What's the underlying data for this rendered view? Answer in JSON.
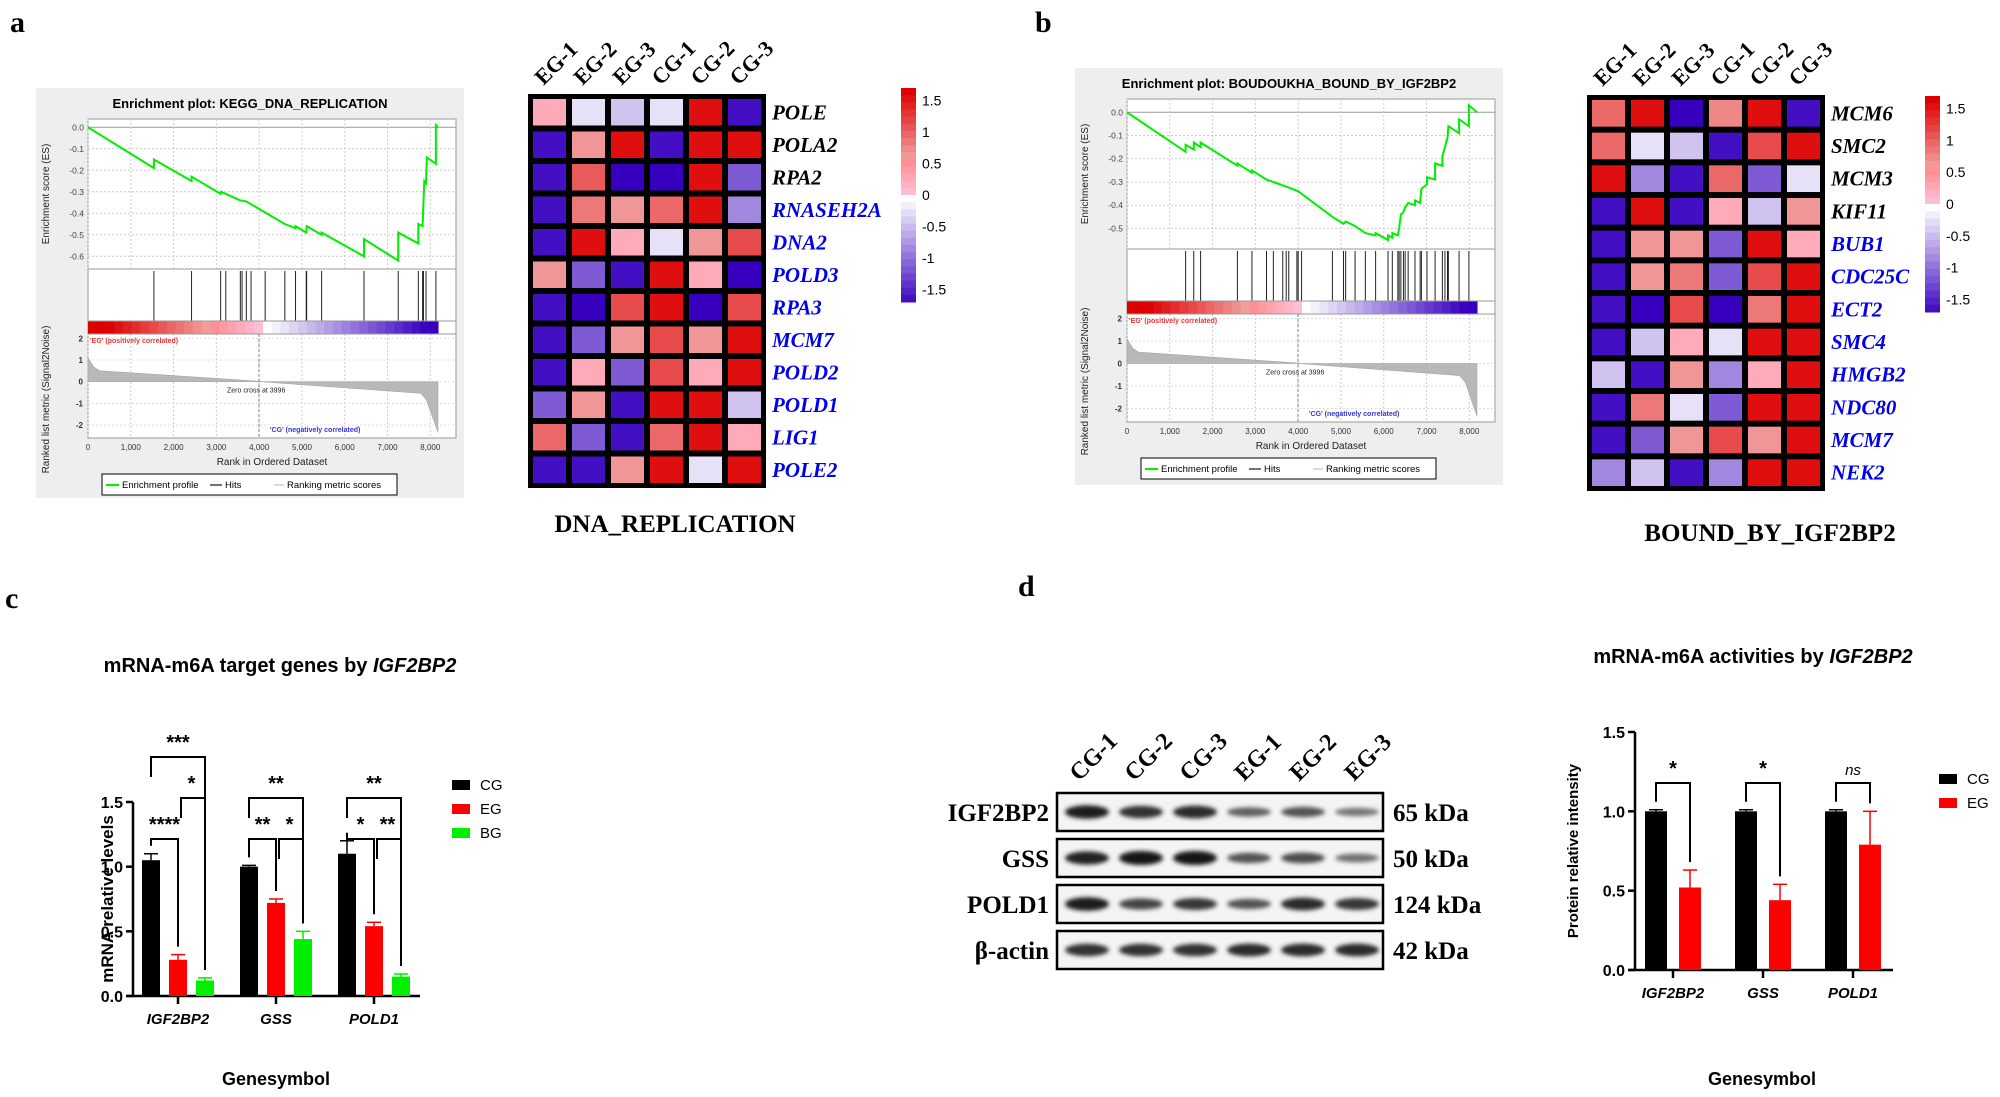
{
  "panel_labels": {
    "a": "a",
    "b": "b",
    "c": "c",
    "d": "d"
  },
  "chart_data": [
    {
      "id": "gsea_a",
      "type": "line",
      "title": "Enrichment plot: KEGG_DNA_REPLICATION",
      "ylabel_top": "Enrichment score (ES)",
      "ylabel_bottom": "Ranked list metric (Signal2Noise)",
      "xlabel": "Rank in Ordered Dataset",
      "es_ylim": [
        -0.65,
        0.02
      ],
      "es_yticks": [
        "0.0",
        "-0.1",
        "-0.2",
        "-0.3",
        "-0.4",
        "-0.5",
        "-0.6"
      ],
      "es_ytick_values": [
        0.0,
        -0.1,
        -0.2,
        -0.3,
        -0.4,
        -0.5,
        -0.6
      ],
      "xlim": [
        0,
        8600
      ],
      "xticks": [
        "0",
        "1,000",
        "2,000",
        "3,000",
        "4,000",
        "5,000",
        "6,000",
        "7,000",
        "8,000"
      ],
      "xtick_values": [
        0,
        1000,
        2000,
        3000,
        4000,
        5000,
        6000,
        7000,
        8000
      ],
      "metric_yticks": [
        "2",
        "1",
        "0",
        "-1",
        "-2"
      ],
      "metric_ytick_values": [
        2,
        1,
        0,
        -1,
        -2
      ],
      "metric_ylim": [
        -2.6,
        2.2
      ],
      "n_genes": 8180,
      "hits": [
        1540,
        2420,
        3100,
        3220,
        3560,
        3600,
        3700,
        3810,
        4140,
        4600,
        4850,
        5100,
        5110,
        5460,
        6450,
        7250,
        7720,
        7820,
        7840,
        7900,
        8130
      ],
      "es_points": [
        [
          0,
          0
        ],
        [
          1540,
          -0.19
        ],
        [
          1540,
          -0.15
        ],
        [
          2420,
          -0.25
        ],
        [
          2420,
          -0.23
        ],
        [
          3100,
          -0.31
        ],
        [
          3110,
          -0.3
        ],
        [
          3220,
          -0.31
        ],
        [
          3560,
          -0.34
        ],
        [
          3700,
          -0.345
        ],
        [
          4600,
          -0.45
        ],
        [
          4850,
          -0.47
        ],
        [
          4850,
          -0.46
        ],
        [
          5100,
          -0.49
        ],
        [
          5110,
          -0.46
        ],
        [
          5460,
          -0.5
        ],
        [
          5460,
          -0.49
        ],
        [
          6450,
          -0.6
        ],
        [
          6450,
          -0.52
        ],
        [
          7250,
          -0.62
        ],
        [
          7250,
          -0.49
        ],
        [
          7720,
          -0.54
        ],
        [
          7720,
          -0.45
        ],
        [
          7820,
          -0.46
        ],
        [
          7840,
          -0.35
        ],
        [
          7860,
          -0.25
        ],
        [
          7900,
          -0.26
        ],
        [
          7920,
          -0.14
        ],
        [
          8130,
          -0.17
        ],
        [
          8130,
          0.01
        ],
        [
          8180,
          0.0
        ]
      ],
      "zero_cross_label": "Zero cross at 3996",
      "zero_cross": 3996,
      "pos_label": "'EG' (positively correlated)",
      "neg_label": "'CG' (negatively correlated)",
      "legend": [
        "Enrichment profile",
        "Hits",
        "Ranking metric scores"
      ],
      "colors": {
        "es": "#00ee00",
        "pos": "#ee3333",
        "neg": "#3333dd"
      }
    },
    {
      "id": "heatmap_a",
      "type": "heatmap",
      "columns": [
        "EG-1",
        "EG-2",
        "EG-3",
        "CG-1",
        "CG-2",
        "CG-3"
      ],
      "rows": [
        "POLE",
        "POLA2",
        "RPA2",
        "RNASEH2A",
        "DNA2",
        "POLD3",
        "RPA3",
        "MCM7",
        "POLD2",
        "POLD1",
        "LIG1",
        "POLE2"
      ],
      "row_label_colors": [
        "#000000",
        "#000000",
        "#000000",
        "#0000ee",
        "#0000ee",
        "#0000ee",
        "#0000ee",
        "#0000ee",
        "#0000ee",
        "#0000ee",
        "#0000ee",
        "#0000ee"
      ],
      "values": [
        [
          0.3,
          -0.2,
          -0.4,
          -0.2,
          1.6,
          -1.6
        ],
        [
          -1.6,
          0.7,
          1.6,
          -1.6,
          1.6,
          1.6
        ],
        [
          -1.6,
          1.1,
          -1.8,
          -1.8,
          1.6,
          -1.1
        ],
        [
          -1.6,
          0.9,
          0.7,
          1.0,
          1.6,
          -0.8
        ],
        [
          -1.6,
          1.6,
          0.3,
          -0.2,
          0.7,
          1.2
        ],
        [
          0.7,
          -1.1,
          -1.6,
          1.6,
          0.3,
          -1.8
        ],
        [
          -1.6,
          -1.8,
          1.2,
          1.6,
          -1.8,
          1.2
        ],
        [
          -1.6,
          -1.1,
          0.7,
          1.2,
          0.7,
          1.6
        ],
        [
          -1.6,
          0.3,
          -1.1,
          1.2,
          0.3,
          1.6
        ],
        [
          -1.1,
          0.7,
          -1.6,
          1.6,
          1.6,
          -0.4
        ],
        [
          1.0,
          -1.1,
          -1.6,
          1.0,
          1.6,
          0.3
        ],
        [
          -1.6,
          -1.6,
          0.7,
          1.6,
          -0.2,
          1.6
        ]
      ],
      "colorbar_ticks": [
        "1.5",
        "1",
        "0.5",
        "0",
        "-0.5",
        "-1",
        "-1.5"
      ],
      "colorbar_tick_values": [
        1.5,
        1,
        0.5,
        0,
        -0.5,
        -1,
        -1.5
      ],
      "range": [
        -1.7,
        1.7
      ],
      "title": "DNA_REPLICATION"
    },
    {
      "id": "gsea_b",
      "type": "line",
      "title": "Enrichment plot: BOUDOUKHA_BOUND_BY_IGF2BP2",
      "ylabel_top": "Enrichment score (ES)",
      "ylabel_bottom": "Ranked list metric (Signal2Noise)",
      "xlabel": "Rank in Ordered Dataset",
      "es_ylim": [
        -0.58,
        0.04
      ],
      "es_yticks": [
        "0.0",
        "-0.1",
        "-0.2",
        "-0.3",
        "-0.4",
        "-0.5"
      ],
      "es_ytick_values": [
        0.0,
        -0.1,
        -0.2,
        -0.3,
        -0.4,
        -0.5
      ],
      "xlim": [
        0,
        8600
      ],
      "xticks": [
        "0",
        "1,000",
        "2,000",
        "3,000",
        "4,000",
        "5,000",
        "6,000",
        "7,000",
        "8,000"
      ],
      "xtick_values": [
        0,
        1000,
        2000,
        3000,
        4000,
        5000,
        6000,
        7000,
        8000
      ],
      "metric_yticks": [
        "2",
        "1",
        "0",
        "-1",
        "-2"
      ],
      "metric_ytick_values": [
        2,
        1,
        0,
        -1,
        -2
      ],
      "metric_ylim": [
        -2.6,
        2.2
      ],
      "n_genes": 8180,
      "hits": [
        1370,
        1560,
        1720,
        2580,
        2920,
        3260,
        3420,
        3640,
        3720,
        3780,
        3970,
        4000,
        4080,
        4800,
        5060,
        5110,
        5330,
        5570,
        5810,
        6100,
        6200,
        6330,
        6360,
        6400,
        6460,
        6500,
        6570,
        6730,
        6850,
        6880,
        7010,
        7200,
        7370,
        7430,
        7490,
        7510,
        7760,
        7990
      ],
      "es_points": [
        [
          0,
          0
        ],
        [
          1370,
          -0.17
        ],
        [
          1370,
          -0.14
        ],
        [
          1560,
          -0.16
        ],
        [
          1560,
          -0.13
        ],
        [
          1720,
          -0.15
        ],
        [
          1720,
          -0.13
        ],
        [
          2580,
          -0.23
        ],
        [
          2580,
          -0.22
        ],
        [
          2920,
          -0.26
        ],
        [
          2920,
          -0.25
        ],
        [
          3260,
          -0.29
        ],
        [
          3420,
          -0.3
        ],
        [
          3720,
          -0.32
        ],
        [
          4000,
          -0.34
        ],
        [
          4800,
          -0.45
        ],
        [
          5060,
          -0.48
        ],
        [
          5110,
          -0.47
        ],
        [
          5330,
          -0.49
        ],
        [
          5570,
          -0.52
        ],
        [
          5810,
          -0.53
        ],
        [
          5810,
          -0.52
        ],
        [
          6100,
          -0.55
        ],
        [
          6100,
          -0.53
        ],
        [
          6200,
          -0.54
        ],
        [
          6200,
          -0.52
        ],
        [
          6330,
          -0.53
        ],
        [
          6360,
          -0.5
        ],
        [
          6400,
          -0.44
        ],
        [
          6460,
          -0.43
        ],
        [
          6500,
          -0.41
        ],
        [
          6570,
          -0.39
        ],
        [
          6730,
          -0.4
        ],
        [
          6730,
          -0.38
        ],
        [
          6850,
          -0.39
        ],
        [
          6880,
          -0.33
        ],
        [
          7010,
          -0.31
        ],
        [
          7010,
          -0.28
        ],
        [
          7200,
          -0.29
        ],
        [
          7200,
          -0.22
        ],
        [
          7370,
          -0.23
        ],
        [
          7370,
          -0.19
        ],
        [
          7430,
          -0.15
        ],
        [
          7490,
          -0.11
        ],
        [
          7510,
          -0.06
        ],
        [
          7760,
          -0.09
        ],
        [
          7760,
          -0.03
        ],
        [
          7990,
          -0.06
        ],
        [
          7990,
          0.03
        ],
        [
          8180,
          0.0
        ]
      ],
      "zero_cross_label": "Zero cross at 3996",
      "zero_cross": 3996,
      "pos_label": "'EG' (positively correlated)",
      "neg_label": "'CG' (negatively correlated)",
      "legend": [
        "Enrichment profile",
        "Hits",
        "Ranking metric scores"
      ],
      "colors": {
        "es": "#00ee00",
        "pos": "#ee3333",
        "neg": "#3333dd"
      }
    },
    {
      "id": "heatmap_b",
      "type": "heatmap",
      "columns": [
        "EG-1",
        "EG-2",
        "EG-3",
        "CG-1",
        "CG-2",
        "CG-3"
      ],
      "rows": [
        "MCM6",
        "SMC2",
        "MCM3",
        "KIF11",
        "BUB1",
        "CDC25C",
        "ECT2",
        "SMC4",
        "HMGB2",
        "NDC80",
        "MCM7",
        "NEK2"
      ],
      "row_label_colors": [
        "#000000",
        "#000000",
        "#000000",
        "#000000",
        "#0000ee",
        "#0000ee",
        "#0000ee",
        "#0000ee",
        "#0000ee",
        "#0000ee",
        "#0000ee",
        "#0000ee"
      ],
      "values": [
        [
          1.0,
          1.6,
          -1.8,
          0.8,
          1.6,
          -1.6
        ],
        [
          1.0,
          -0.2,
          -0.4,
          -1.6,
          1.2,
          1.6
        ],
        [
          1.6,
          -0.8,
          -1.6,
          1.0,
          -1.1,
          -0.2
        ],
        [
          -1.6,
          1.6,
          -1.6,
          0.3,
          -0.4,
          0.7
        ],
        [
          -1.6,
          0.7,
          0.7,
          -1.1,
          1.6,
          0.3
        ],
        [
          -1.6,
          0.7,
          0.9,
          -1.1,
          1.2,
          1.6
        ],
        [
          -1.6,
          -1.8,
          1.2,
          -1.8,
          0.9,
          1.6
        ],
        [
          -1.6,
          -0.4,
          0.3,
          -0.2,
          1.6,
          1.6
        ],
        [
          -0.4,
          -1.6,
          0.7,
          -0.8,
          0.3,
          1.6
        ],
        [
          -1.6,
          0.9,
          -0.2,
          -1.1,
          1.6,
          1.6
        ],
        [
          -1.6,
          -1.1,
          0.7,
          1.2,
          0.7,
          1.6
        ],
        [
          -0.8,
          -0.4,
          -1.6,
          -0.8,
          1.6,
          1.6
        ]
      ],
      "colorbar_ticks": [
        "1.5",
        "1",
        "0.5",
        "0",
        "-0.5",
        "-1",
        "-1.5"
      ],
      "colorbar_tick_values": [
        1.5,
        1,
        0.5,
        0,
        -0.5,
        -1,
        -1.5
      ],
      "range": [
        -1.7,
        1.7
      ],
      "title": "BOUND_BY_IGF2BP2"
    },
    {
      "id": "bar_c",
      "type": "bar",
      "title_prefix": "mRNA-m6A target genes by ",
      "title_italic": "IGF2BP2",
      "xlabel": "Genesymbol",
      "ylabel": "mRNA relative levels",
      "ylim": [
        0,
        1.5
      ],
      "yticks": [
        "0.0",
        "0.5",
        "1.0",
        "1.5"
      ],
      "ytick_values": [
        0,
        0.5,
        1.0,
        1.5
      ],
      "categories": [
        "IGF2BP2",
        "GSS",
        "POLD1"
      ],
      "series": [
        {
          "name": "CG",
          "color": "#000000",
          "values": [
            1.05,
            1.0,
            1.1
          ],
          "errors": [
            0.05,
            0.01,
            0.1
          ]
        },
        {
          "name": "EG",
          "color": "#ff0000",
          "values": [
            0.28,
            0.72,
            0.54
          ],
          "errors": [
            0.04,
            0.03,
            0.03
          ]
        },
        {
          "name": "BG",
          "color": "#00ee00",
          "values": [
            0.12,
            0.44,
            0.15
          ],
          "errors": [
            0.02,
            0.06,
            0.02
          ]
        }
      ],
      "significance": [
        {
          "category": 0,
          "from": 0,
          "to": 1,
          "label": "****",
          "level": 1
        },
        {
          "category": 0,
          "from": 1,
          "to": 2,
          "label": "*",
          "level": 2
        },
        {
          "category": 0,
          "from": 0,
          "to": 2,
          "label": "***",
          "level": 3
        },
        {
          "category": 1,
          "from": 0,
          "to": 1,
          "label": "**",
          "level": 1
        },
        {
          "category": 1,
          "from": 1,
          "to": 2,
          "label": "*",
          "level": 1
        },
        {
          "category": 1,
          "from": 0,
          "to": 2,
          "label": "**",
          "level": 2
        },
        {
          "category": 2,
          "from": 0,
          "to": 1,
          "label": "*",
          "level": 1
        },
        {
          "category": 2,
          "from": 1,
          "to": 2,
          "label": "**",
          "level": 1
        },
        {
          "category": 2,
          "from": 0,
          "to": 2,
          "label": "**",
          "level": 2
        }
      ],
      "legend": [
        "CG",
        "EG",
        "BG"
      ],
      "legend_position": "right"
    },
    {
      "id": "western_blot",
      "type": "table",
      "lanes": [
        "CG-1",
        "CG-2",
        "CG-3",
        "EG-1",
        "EG-2",
        "EG-3"
      ],
      "proteins": [
        {
          "name": "IGF2BP2",
          "size": "65 kDa",
          "intensities": [
            0.95,
            0.8,
            0.85,
            0.45,
            0.55,
            0.3
          ]
        },
        {
          "name": "GSS",
          "size": "50 kDa",
          "intensities": [
            0.9,
            1.0,
            1.0,
            0.55,
            0.6,
            0.35
          ]
        },
        {
          "name": "POLD1",
          "size": "124 kDa",
          "intensities": [
            0.95,
            0.65,
            0.75,
            0.55,
            0.85,
            0.75
          ]
        },
        {
          "name": "β-actin",
          "size": "42 kDa",
          "intensities": [
            0.8,
            0.8,
            0.8,
            0.85,
            0.85,
            0.85
          ]
        }
      ]
    },
    {
      "id": "bar_d",
      "type": "bar",
      "title_prefix": "mRNA-m6A activities by ",
      "title_italic": "IGF2BP2",
      "xlabel": "Genesymbol",
      "ylabel": "Protein relative intensity",
      "ylim": [
        0,
        1.5
      ],
      "yticks": [
        "0.0",
        "0.5",
        "1.0",
        "1.5"
      ],
      "ytick_values": [
        0,
        0.5,
        1.0,
        1.5
      ],
      "categories": [
        "IGF2BP2",
        "GSS",
        "POLD1"
      ],
      "series": [
        {
          "name": "CG",
          "color": "#000000",
          "values": [
            1.0,
            1.0,
            1.0
          ],
          "errors": [
            0.01,
            0.01,
            0.01
          ]
        },
        {
          "name": "EG",
          "color": "#ff0000",
          "values": [
            0.52,
            0.44,
            0.79
          ],
          "errors": [
            0.11,
            0.1,
            0.21
          ]
        }
      ],
      "significance": [
        {
          "category": 0,
          "from": 0,
          "to": 1,
          "label": "*",
          "italic": false
        },
        {
          "category": 1,
          "from": 0,
          "to": 1,
          "label": "*",
          "italic": false
        },
        {
          "category": 2,
          "from": 0,
          "to": 1,
          "label": "ns",
          "italic": true
        }
      ],
      "legend": [
        "CG",
        "EG"
      ],
      "legend_position": "right"
    }
  ]
}
